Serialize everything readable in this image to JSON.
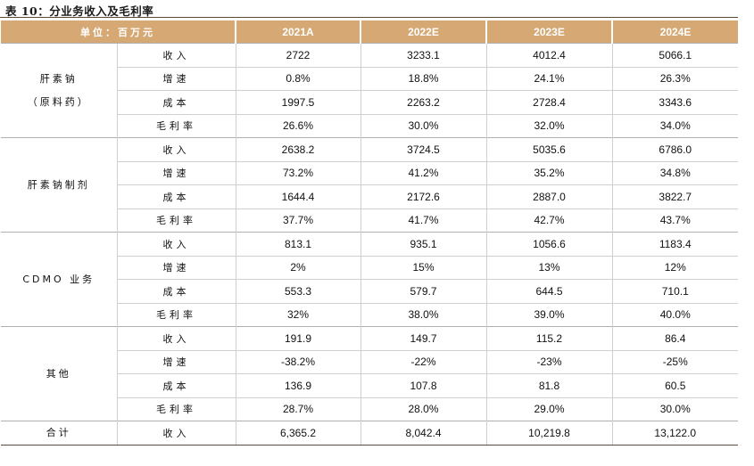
{
  "title": "表 10：分业务收入及毛利率",
  "header": {
    "unit_label": "单位：百万元",
    "years": [
      "2021A",
      "2022E",
      "2023E",
      "2024E"
    ]
  },
  "segments": [
    {
      "name_lines": [
        "肝素钠",
        "（原料药）"
      ],
      "rows": [
        {
          "metric": "收入",
          "values": [
            "2722",
            "3233.1",
            "4012.4",
            "5066.1"
          ]
        },
        {
          "metric": "增速",
          "values": [
            "0.8%",
            "18.8%",
            "24.1%",
            "26.3%"
          ]
        },
        {
          "metric": "成本",
          "values": [
            "1997.5",
            "2263.2",
            "2728.4",
            "3343.6"
          ]
        },
        {
          "metric": "毛利率",
          "values": [
            "26.6%",
            "30.0%",
            "32.0%",
            "34.0%"
          ]
        }
      ]
    },
    {
      "name_lines": [
        "肝素钠制剂"
      ],
      "rows": [
        {
          "metric": "收入",
          "values": [
            "2638.2",
            "3724.5",
            "5035.6",
            "6786.0"
          ]
        },
        {
          "metric": "增速",
          "values": [
            "73.2%",
            "41.2%",
            "35.2%",
            "34.8%"
          ]
        },
        {
          "metric": "成本",
          "values": [
            "1644.4",
            "2172.6",
            "2887.0",
            "3822.7"
          ]
        },
        {
          "metric": "毛利率",
          "values": [
            "37.7%",
            "41.7%",
            "42.7%",
            "43.7%"
          ]
        }
      ]
    },
    {
      "name_lines": [
        "CDMO 业务"
      ],
      "rows": [
        {
          "metric": "收入",
          "values": [
            "813.1",
            "935.1",
            "1056.6",
            "1183.4"
          ]
        },
        {
          "metric": "增速",
          "values": [
            "2%",
            "15%",
            "13%",
            "12%"
          ]
        },
        {
          "metric": "成本",
          "values": [
            "553.3",
            "579.7",
            "644.5",
            "710.1"
          ]
        },
        {
          "metric": "毛利率",
          "values": [
            "32%",
            "38.0%",
            "39.0%",
            "40.0%"
          ]
        }
      ]
    },
    {
      "name_lines": [
        "其他"
      ],
      "rows": [
        {
          "metric": "收入",
          "values": [
            "191.9",
            "149.7",
            "115.2",
            "86.4"
          ]
        },
        {
          "metric": "增速",
          "values": [
            "-38.2%",
            "-22%",
            "-23%",
            "-25%"
          ]
        },
        {
          "metric": "成本",
          "values": [
            "136.9",
            "107.8",
            "81.8",
            "60.5"
          ]
        },
        {
          "metric": "毛利率",
          "values": [
            "28.7%",
            "28.0%",
            "29.0%",
            "30.0%"
          ]
        }
      ]
    }
  ],
  "total": {
    "name": "合计",
    "metric": "收入",
    "values": [
      "6,365.2",
      "8,042.4",
      "10,219.8",
      "13,122.0"
    ]
  },
  "colors": {
    "header_bg": "#d5a874",
    "header_text": "#ffffff",
    "rule": "#5a4a3a",
    "grid": "#cfcfcf"
  }
}
